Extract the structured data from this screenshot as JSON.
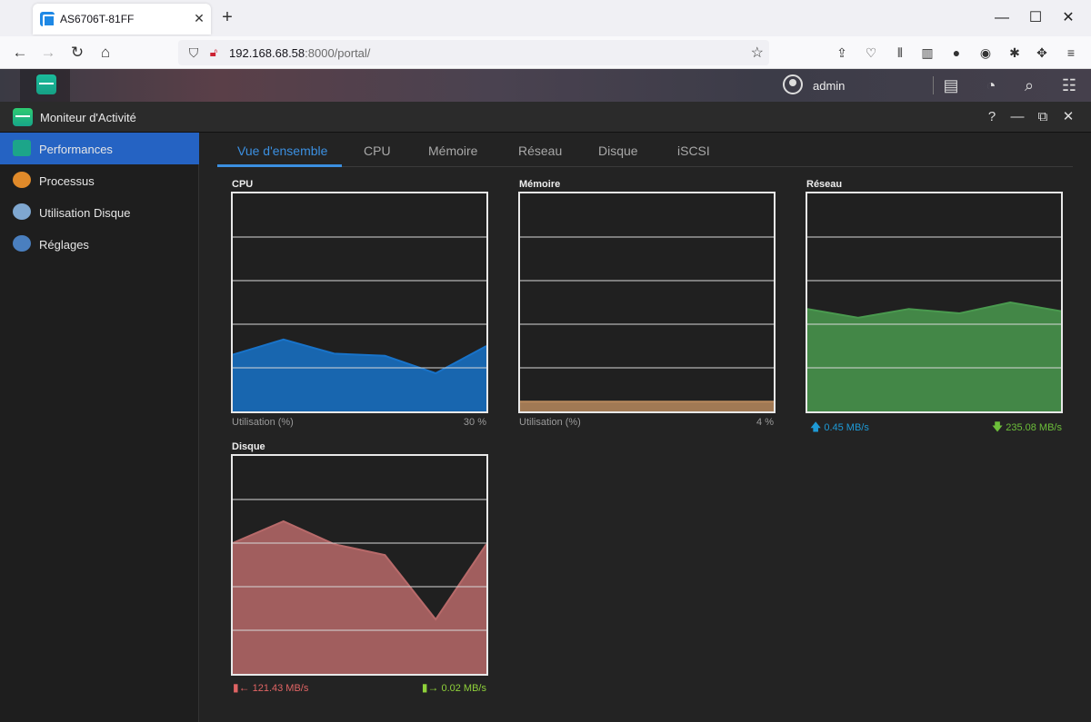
{
  "browser": {
    "tab_title": "AS6706T-81FF",
    "url_host": "192.168.68.58",
    "url_rest": ":8000/portal/"
  },
  "nas": {
    "user": "admin"
  },
  "window": {
    "title": "Moniteur d'Activité"
  },
  "sidebar": {
    "items": [
      {
        "label": "Performances",
        "icon": "chart-icon"
      },
      {
        "label": "Processus",
        "icon": "process-icon"
      },
      {
        "label": "Utilisation Disque",
        "icon": "disk-icon"
      },
      {
        "label": "Réglages",
        "icon": "gear-icon"
      }
    ]
  },
  "tabs": [
    "Vue d'ensemble",
    "CPU",
    "Mémoire",
    "Réseau",
    "Disque",
    "iSCSI"
  ],
  "panels": {
    "cpu": {
      "title": "CPU",
      "foot_label": "Utilisation (%)",
      "foot_value": "30 %"
    },
    "memory": {
      "title": "Mémoire",
      "foot_label": "Utilisation (%)",
      "foot_value": "4 %"
    },
    "network": {
      "title": "Réseau",
      "upload": "0.45 MB/s",
      "download": "235.08 MB/s"
    },
    "disk": {
      "title": "Disque",
      "read": "121.43 MB/s",
      "write": "0.02 MB/s"
    }
  },
  "colors": {
    "cpu": "#1873c9",
    "memory": "#b98a5e",
    "network": "#4a9a4f",
    "disk": "#b86a6a",
    "accent": "#2563c3"
  },
  "chart_data": [
    {
      "type": "area",
      "name": "cpu",
      "values": [
        0.26,
        0.33,
        0.265,
        0.255,
        0.175,
        0.3
      ],
      "ylim": [
        0,
        1
      ]
    },
    {
      "type": "area",
      "name": "memory",
      "values": [
        0.045,
        0.045,
        0.045,
        0.045,
        0.045,
        0.045
      ],
      "ylim": [
        0,
        1
      ]
    },
    {
      "type": "area",
      "name": "network",
      "values": [
        0.47,
        0.43,
        0.47,
        0.45,
        0.5,
        0.46
      ],
      "ylim": [
        0,
        1
      ]
    },
    {
      "type": "area",
      "name": "disk",
      "values": [
        0.6,
        0.7,
        0.595,
        0.545,
        0.25,
        0.595
      ],
      "ylim": [
        0,
        1
      ]
    }
  ]
}
